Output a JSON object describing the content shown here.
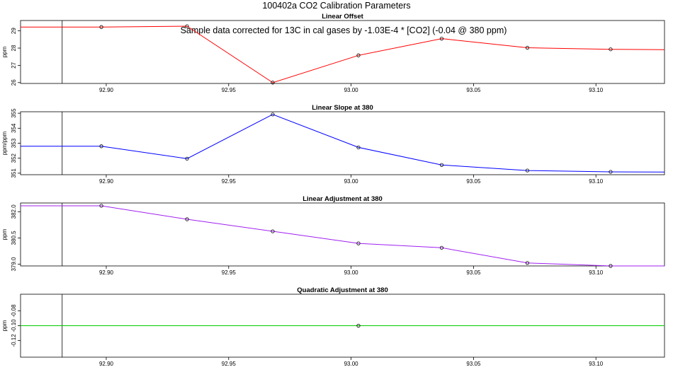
{
  "figure": {
    "title": "100402a   CO2 Calibration Parameters",
    "note": "Sample data corrected for 13C in cal gases by -1.03E-4 * [CO2] (-0.04 @ 380 ppm)"
  },
  "chart_data": [
    {
      "type": "line",
      "title": "Linear Offset",
      "xlabel": "",
      "ylabel": "ppm",
      "color": "#ff0000",
      "xlim": [
        92.865,
        93.128
      ],
      "ylim": [
        25.95,
        29.6
      ],
      "x_ticks": [
        "92.90",
        "92.95",
        "93.00",
        "93.05",
        "93.10"
      ],
      "y_ticks": [
        "26",
        "27",
        "28",
        "29"
      ],
      "vertical_line_x": 92.882,
      "line_x": [
        92.865,
        92.898,
        92.933,
        92.968,
        93.003,
        93.037,
        93.072,
        93.106,
        93.128
      ],
      "line_y": [
        29.22,
        29.22,
        29.27,
        26.0,
        27.58,
        28.55,
        28.02,
        27.93,
        27.91
      ],
      "points_x": [
        92.898,
        92.933,
        92.968,
        93.003,
        93.037,
        93.072,
        93.106
      ],
      "points_y": [
        29.22,
        29.27,
        26.0,
        27.58,
        28.55,
        28.02,
        27.93
      ]
    },
    {
      "type": "line",
      "title": "Linear Slope at 380",
      "xlabel": "",
      "ylabel": "ppm/ppm",
      "color": "#0000ff",
      "xlim": [
        92.865,
        93.128
      ],
      "ylim": [
        350.9,
        355.1
      ],
      "x_ticks": [
        "92.90",
        "92.95",
        "93.00",
        "93.05",
        "93.10"
      ],
      "y_ticks": [
        "351",
        "352",
        "353",
        "354",
        "355"
      ],
      "vertical_line_x": 92.882,
      "line_x": [
        92.865,
        92.898,
        92.933,
        92.968,
        93.003,
        93.037,
        93.072,
        93.106,
        93.128
      ],
      "line_y": [
        352.8,
        352.8,
        351.97,
        354.92,
        352.72,
        351.55,
        351.18,
        351.09,
        351.08
      ],
      "points_x": [
        92.898,
        92.933,
        92.968,
        93.003,
        93.037,
        93.072,
        93.106
      ],
      "points_y": [
        352.8,
        351.97,
        354.92,
        352.72,
        351.55,
        351.18,
        351.09
      ]
    },
    {
      "type": "line",
      "title": "Linear Adjustment at 380",
      "xlabel": "",
      "ylabel": "ppm",
      "color": "#a020f0",
      "xlim": [
        92.865,
        93.128
      ],
      "ylim": [
        378.9,
        382.5
      ],
      "x_ticks": [
        "92.90",
        "92.95",
        "93.00",
        "93.05",
        "93.10"
      ],
      "y_ticks": [
        "379.0",
        "380.5",
        "382.0"
      ],
      "vertical_line_x": 92.882,
      "line_x": [
        92.865,
        92.898,
        92.933,
        92.968,
        93.003,
        93.037,
        93.072,
        93.106,
        93.128
      ],
      "line_y": [
        382.34,
        382.34,
        381.57,
        380.88,
        380.19,
        379.94,
        379.07,
        378.9,
        378.9
      ],
      "points_x": [
        92.898,
        92.933,
        92.968,
        93.003,
        93.037,
        93.072,
        93.106
      ],
      "points_y": [
        382.34,
        381.57,
        380.88,
        380.19,
        379.94,
        379.07,
        378.9
      ]
    },
    {
      "type": "line",
      "title": "Quadratic Adjustment at 380",
      "xlabel": "",
      "ylabel": "ppm",
      "color": "#00cc00",
      "xlim": [
        92.865,
        93.128
      ],
      "ylim": [
        -0.1425,
        -0.0575
      ],
      "x_ticks": [
        "92.90",
        "92.95",
        "93.00",
        "93.05",
        "93.10"
      ],
      "y_ticks": [
        "-0.12",
        "-0.10",
        "-0.08"
      ],
      "vertical_line_x": 92.882,
      "line_x": [
        92.865,
        93.128
      ],
      "line_y": [
        -0.1,
        -0.1
      ],
      "points_x": [
        93.003
      ],
      "points_y": [
        -0.1
      ]
    }
  ]
}
